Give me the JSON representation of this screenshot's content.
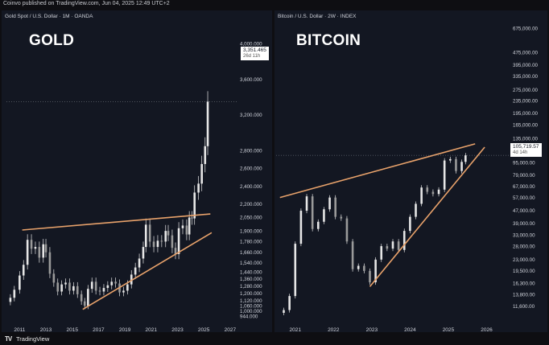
{
  "header": {
    "published": "Coinvo published on TradingView.com, Jun 04, 2025 12:49 UTC+2"
  },
  "footer": {
    "logo_glyph": "TV",
    "brand": "TradingView"
  },
  "colors": {
    "background": "#131722",
    "candles": "#e6e6e6",
    "trendline": "#e8a26b",
    "text": "#d1d4dc"
  },
  "chart_data": [
    {
      "type": "candlestick",
      "title": "Gold Spot / U.S. Dollar · 1M · OANDA",
      "annotation_title": "GOLD",
      "x_ticks": [
        "2011",
        "2013",
        "2015",
        "2017",
        "2019",
        "2021",
        "2023",
        "2025",
        "2027"
      ],
      "y_ticks": [
        "4,000.000",
        "3,600.000",
        "3,200.000",
        "2,800.000",
        "2,600.000",
        "2,400.000",
        "2,200.000",
        "2,050.000",
        "1,900.000",
        "1,780.000",
        "1,660.000",
        "1,540.000",
        "1,440.000",
        "1,360.000",
        "1,280.000",
        "1,200.000",
        "1,120.000",
        "1,060.000",
        "1,000.000",
        "944.000"
      ],
      "y_tick_values": [
        4000,
        3600,
        3200,
        2800,
        2600,
        2400,
        2200,
        2050,
        1900,
        1780,
        1660,
        1540,
        1440,
        1360,
        1280,
        1200,
        1120,
        1060,
        1000,
        944
      ],
      "ylim": [
        900,
        4300
      ],
      "xlim": [
        2010.0,
        2027.5
      ],
      "last_price": "3,351.465",
      "countdown": "26d 11h",
      "series": {
        "x": [
          2010.3,
          2010.6,
          2011.0,
          2011.3,
          2011.6,
          2011.9,
          2012.2,
          2012.5,
          2012.8,
          2013.0,
          2013.3,
          2013.6,
          2013.9,
          2014.2,
          2014.5,
          2014.8,
          2015.1,
          2015.4,
          2015.7,
          2015.95,
          2016.2,
          2016.5,
          2016.8,
          2017.1,
          2017.4,
          2017.7,
          2018.0,
          2018.3,
          2018.6,
          2018.9,
          2019.2,
          2019.5,
          2019.8,
          2020.1,
          2020.4,
          2020.6,
          2020.9,
          2021.2,
          2021.5,
          2021.8,
          2022.1,
          2022.3,
          2022.6,
          2022.85,
          2023.1,
          2023.4,
          2023.7,
          2023.9,
          2024.1,
          2024.3,
          2024.6,
          2024.85,
          2025.1,
          2025.3
        ],
        "values": [
          1150,
          1240,
          1400,
          1520,
          1800,
          1700,
          1720,
          1600,
          1750,
          1660,
          1420,
          1320,
          1220,
          1300,
          1320,
          1230,
          1280,
          1190,
          1110,
          1060,
          1250,
          1330,
          1230,
          1220,
          1260,
          1290,
          1330,
          1310,
          1210,
          1230,
          1300,
          1410,
          1490,
          1590,
          1720,
          1970,
          1780,
          1720,
          1790,
          1780,
          1900,
          1850,
          1710,
          1640,
          1930,
          1960,
          1860,
          2050,
          2040,
          2330,
          2430,
          2650,
          2850,
          3350
        ]
      },
      "trendlines": [
        {
          "from": [
            2011.2,
            1910
          ],
          "to": [
            2025.5,
            2090
          ]
        },
        {
          "from": [
            2015.8,
            1020
          ],
          "to": [
            2025.6,
            1880
          ]
        }
      ]
    },
    {
      "type": "candlestick",
      "title": "Bitcoin / U.S. Dollar · 2W · INDEX",
      "annotation_title": "BITCOIN",
      "x_ticks": [
        "2021",
        "2022",
        "2023",
        "2024",
        "2025",
        "2026"
      ],
      "y_ticks": [
        "675,000.00",
        "475,000.00",
        "395,000.00",
        "335,000.00",
        "275,000.00",
        "235,000.00",
        "195,000.00",
        "165,000.00",
        "135,000.00",
        "115,000.00",
        "95,000.00",
        "79,000.00",
        "67,000.00",
        "57,000.00",
        "47,000.00",
        "39,000.00",
        "33,000.00",
        "28,000.00",
        "23,000.00",
        "19,500.00",
        "16,300.00",
        "13,800.00",
        "11,600.00"
      ],
      "y_tick_values": [
        675000,
        475000,
        395000,
        335000,
        275000,
        235000,
        195000,
        165000,
        135000,
        115000,
        95000,
        79000,
        67000,
        57000,
        47000,
        39000,
        33000,
        28000,
        23000,
        19500,
        16300,
        13800,
        11600
      ],
      "ylim": [
        9500,
        800000
      ],
      "y_scale": "log",
      "xlim": [
        2020.5,
        2026.6
      ],
      "last_price": "105,719.57",
      "countdown": "4d 14h",
      "series": {
        "x": [
          2020.7,
          2020.85,
          2021.0,
          2021.15,
          2021.3,
          2021.45,
          2021.6,
          2021.75,
          2021.9,
          2022.05,
          2022.2,
          2022.35,
          2022.5,
          2022.65,
          2022.8,
          2022.95,
          2023.1,
          2023.25,
          2023.4,
          2023.55,
          2023.7,
          2023.85,
          2024.0,
          2024.15,
          2024.3,
          2024.45,
          2024.6,
          2024.75,
          2024.9,
          2025.05,
          2025.2,
          2025.35,
          2025.45
        ],
        "values": [
          11000,
          13500,
          29000,
          47000,
          58000,
          36000,
          40000,
          48000,
          57000,
          43000,
          42000,
          30000,
          20000,
          21000,
          19500,
          16500,
          23000,
          28000,
          27000,
          30000,
          26500,
          35000,
          43000,
          52000,
          66000,
          62000,
          60000,
          64000,
          98000,
          100000,
          84000,
          96000,
          105700
        ]
      },
      "trendlines": [
        {
          "from": [
            2020.6,
            57000
          ],
          "to": [
            2025.7,
            125000
          ]
        },
        {
          "from": [
            2022.95,
            15500
          ],
          "to": [
            2025.95,
            119000
          ]
        }
      ]
    }
  ]
}
